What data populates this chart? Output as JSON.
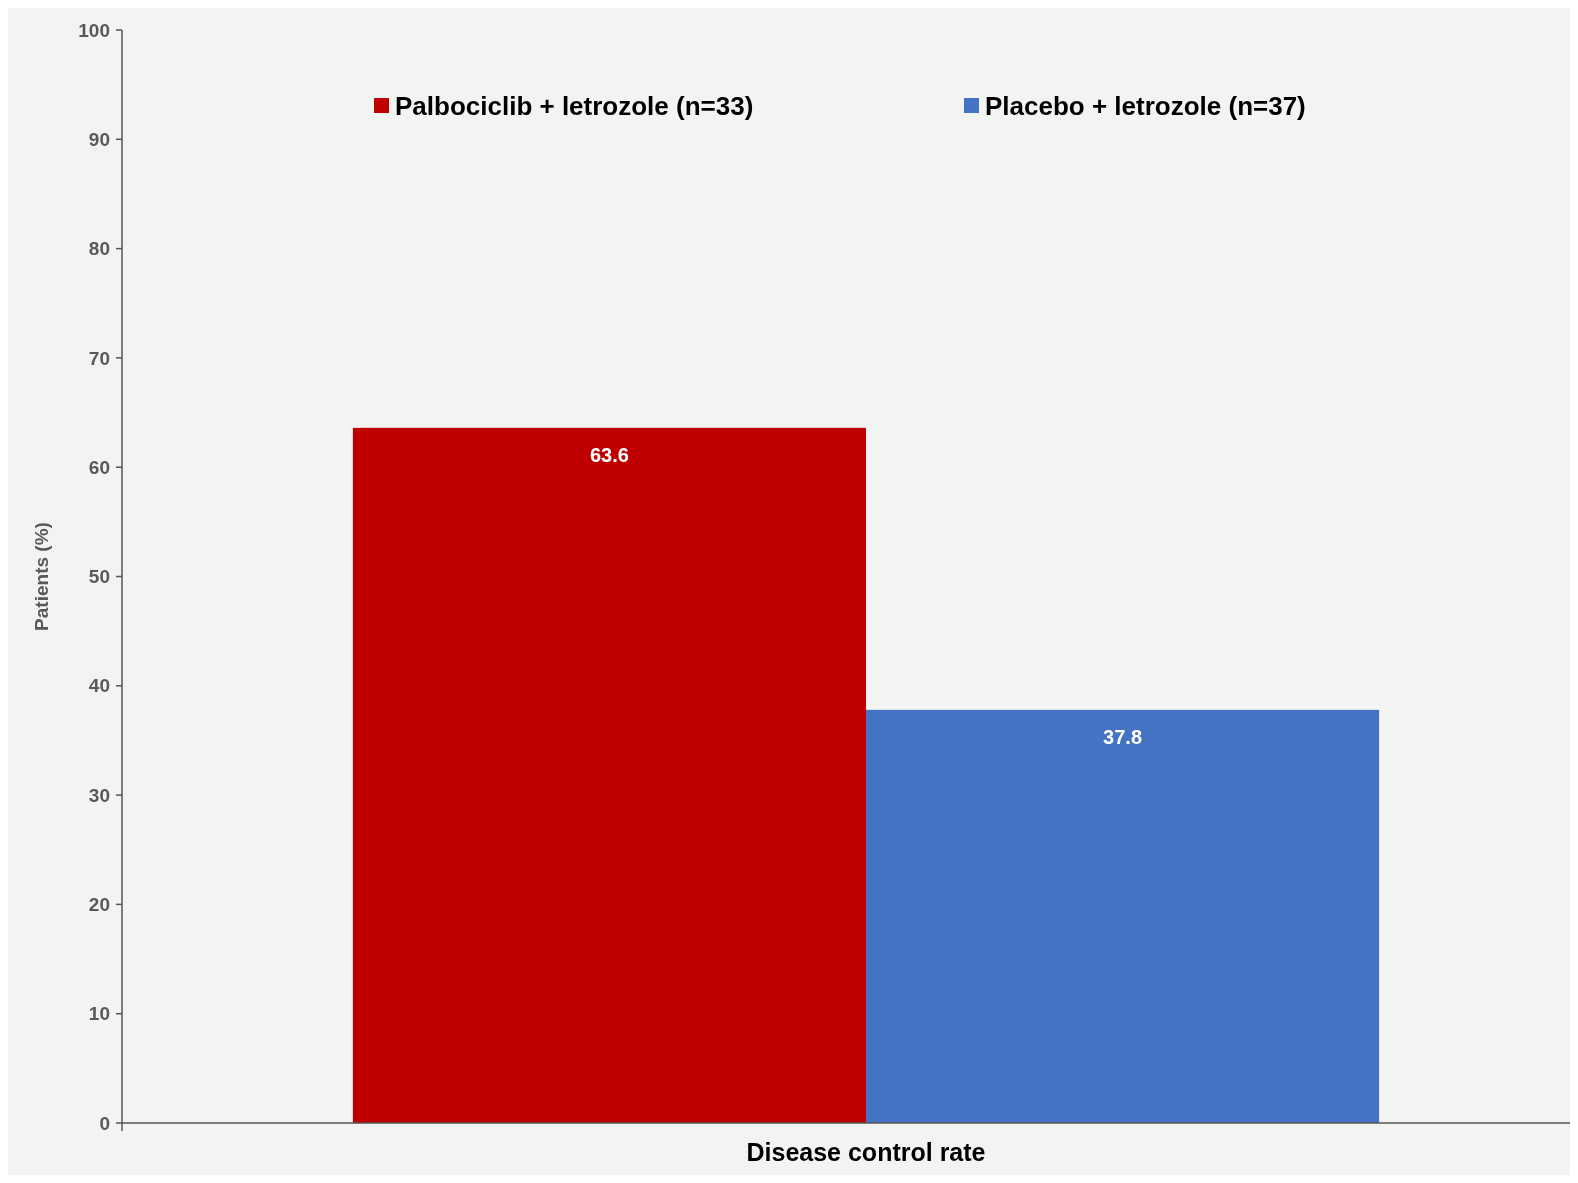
{
  "chart_data": {
    "type": "bar",
    "categories": [
      "Disease control rate"
    ],
    "ylabel": "Patients (%)",
    "series": [
      {
        "name": "Palbociclib + letrozole (n=33)",
        "color": "#c00000",
        "values": [
          63.6
        ]
      },
      {
        "name": "Placebo + letrozole (n=37)",
        "color": "#4472c4",
        "values": [
          37.8
        ]
      }
    ],
    "ylim": [
      0,
      100
    ],
    "yticks": [
      0,
      10,
      20,
      30,
      40,
      50,
      60,
      70,
      80,
      90,
      100
    ],
    "data_labels": true,
    "legend": "top",
    "grid": false
  }
}
